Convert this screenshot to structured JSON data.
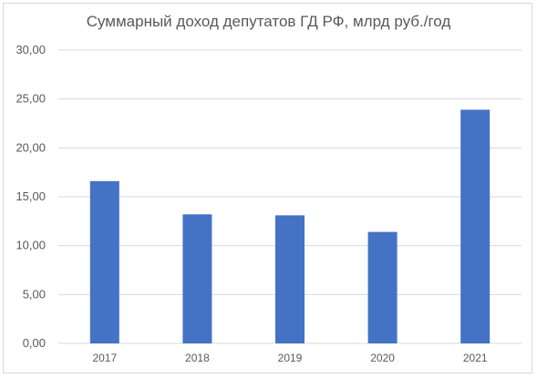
{
  "chart_data": {
    "type": "bar",
    "title": "Суммарный доход депутатов ГД РФ, млрд руб./год",
    "categories": [
      "2017",
      "2018",
      "2019",
      "2020",
      "2021"
    ],
    "values": [
      16.6,
      13.2,
      13.1,
      11.4,
      23.9
    ],
    "ylim": [
      0,
      30
    ],
    "yticks": [
      0,
      5,
      10,
      15,
      20,
      25,
      30
    ],
    "ytick_labels": [
      "0,00",
      "5,00",
      "10,00",
      "15,00",
      "20,00",
      "25,00",
      "30,00"
    ],
    "grid": true,
    "bar_color": "#4472c4",
    "grid_color": "#d9d9d9"
  }
}
